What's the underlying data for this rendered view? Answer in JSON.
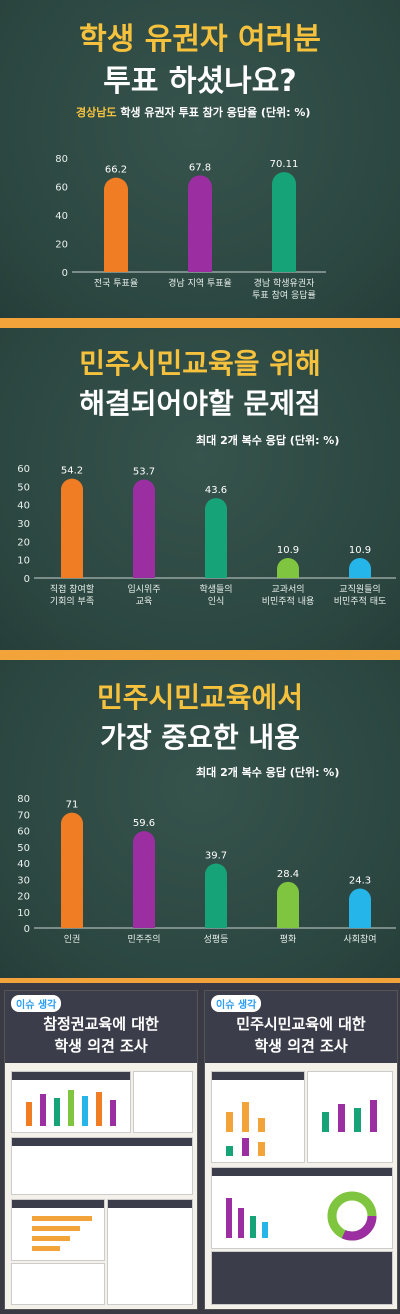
{
  "panel1": {
    "title_line1": "학생 유권자 여러분",
    "title_line2": "투표 하셨나요?",
    "subtitle_highlight": "경상남도",
    "subtitle_rest": " 학생 유권자 투표 참가 응답율 (단위: %)"
  },
  "panel2": {
    "title_line1": "민주시민교육을 위해",
    "title_line2": "해결되어야할 문제점",
    "subtitle": "최대 2개 복수 응답  (단위: %)"
  },
  "panel3": {
    "title_line1": "민주시민교육에서",
    "title_line2": "가장 중요한 내용",
    "subtitle": "최대 2개 복수 응답  (단위: %)"
  },
  "posters": {
    "left": {
      "logo": "이슈 생각",
      "title_line1": "참정권교육에 대한",
      "title_line2": "학생 의견 조사"
    },
    "right": {
      "logo": "이슈 생각",
      "title_line1": "민주시민교육에 대한",
      "title_line2": "학생 의견 조사"
    }
  },
  "chart_data": [
    {
      "type": "bar",
      "categories": [
        "전국 투표율",
        "경남 지역 투표율",
        "경남 학생유권자 투표 참여 응답률"
      ],
      "category_lines": [
        [
          "전국 투표율"
        ],
        [
          "경남 지역 투표율"
        ],
        [
          "경남 학생유권자",
          "투표 참여 응답률"
        ]
      ],
      "values": [
        66.2,
        67.8,
        70.11
      ],
      "labels": [
        "66.2",
        "67.8",
        "70.11"
      ],
      "colors": [
        "#f07d23",
        "#9b2ea0",
        "#17a378"
      ],
      "ylim": [
        0,
        80
      ],
      "yticks": [
        0,
        20,
        40,
        60,
        80
      ],
      "grid": false
    },
    {
      "type": "bar",
      "categories": [
        "직접 참여할 기회의 부족",
        "입시위주 교육",
        "학생들의 인식",
        "교과서의 비민주적 내용",
        "교직원들의 비민주적 태도"
      ],
      "category_lines": [
        [
          "직접 참여할",
          "기회의 부족"
        ],
        [
          "입시위주",
          "교육"
        ],
        [
          "학생들의",
          "인식"
        ],
        [
          "교과서의",
          "비민주적 내용"
        ],
        [
          "교직원들의",
          "비민주적 태도"
        ]
      ],
      "values": [
        54.2,
        53.7,
        43.6,
        10.9,
        10.9
      ],
      "labels": [
        "54.2",
        "53.7",
        "43.6",
        "10.9",
        "10.9"
      ],
      "colors": [
        "#f07d23",
        "#9b2ea0",
        "#17a378",
        "#7fc540",
        "#26b5e8"
      ],
      "ylim": [
        0,
        60
      ],
      "yticks": [
        0,
        10,
        20,
        30,
        40,
        50,
        60
      ],
      "grid": false
    },
    {
      "type": "bar",
      "categories": [
        "인권",
        "민주주의",
        "성평등",
        "평화",
        "사회참여"
      ],
      "category_lines": [
        [
          "인권"
        ],
        [
          "민주주의"
        ],
        [
          "성평등"
        ],
        [
          "평화"
        ],
        [
          "사회참여"
        ]
      ],
      "values": [
        71,
        59.6,
        39.7,
        28.4,
        24.3
      ],
      "labels": [
        "71",
        "59.6",
        "39.7",
        "28.4",
        "24.3"
      ],
      "colors": [
        "#f07d23",
        "#9b2ea0",
        "#17a378",
        "#7fc540",
        "#26b5e8"
      ],
      "ylim": [
        0,
        80
      ],
      "yticks": [
        0,
        10,
        20,
        30,
        40,
        50,
        60,
        70,
        80
      ],
      "grid": false
    }
  ]
}
